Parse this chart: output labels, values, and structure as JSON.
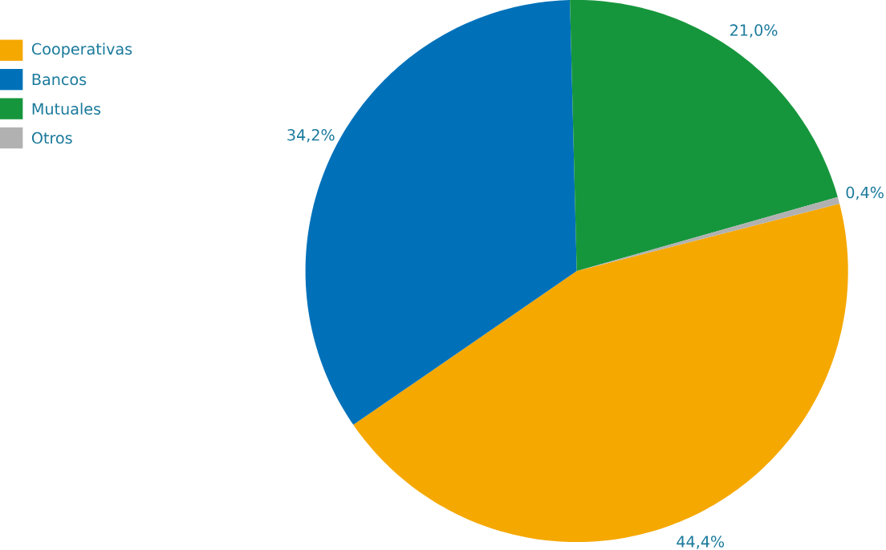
{
  "chart_data": {
    "type": "pie",
    "categories": [
      "Cooperativas",
      "Bancos",
      "Mutuales",
      "Otros"
    ],
    "values": [
      44.4,
      34.2,
      21.0,
      0.4
    ],
    "colors": [
      "#f5a800",
      "#0071b9",
      "#16963c",
      "#b1b1b1"
    ],
    "value_labels": [
      "44,4%",
      "34,2%",
      "21,0%",
      "0,4%"
    ],
    "legend": "top left"
  }
}
